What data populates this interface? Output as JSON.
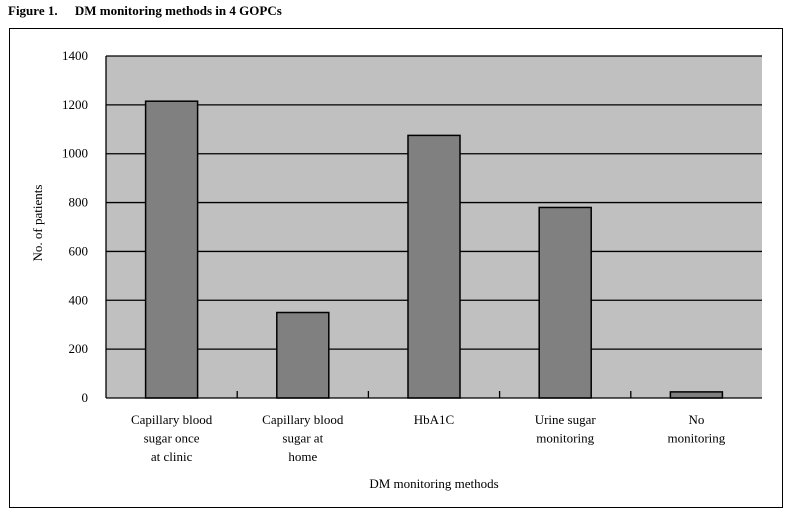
{
  "figure": {
    "label": "Figure 1.",
    "title": "DM monitoring methods in 4 GOPCs"
  },
  "colors": {
    "plot_background": "#c0c0c0",
    "bar_fill": "#808080",
    "bar_stroke": "#000000",
    "gridline": "#000000"
  },
  "chart_data": {
    "type": "bar",
    "categories": [
      "Capillary blood sugar once at clinic",
      "Capillary blood sugar at home",
      "HbA1C",
      "Urine sugar monitoring",
      "No monitoring"
    ],
    "category_label_lines": [
      [
        "Capillary blood",
        "sugar once",
        "at clinic"
      ],
      [
        "Capillary blood",
        "sugar at",
        "home"
      ],
      [
        "HbA1C"
      ],
      [
        "Urine sugar",
        "monitoring"
      ],
      [
        "No",
        "monitoring"
      ]
    ],
    "values": [
      1215,
      350,
      1075,
      780,
      25
    ],
    "xlabel": "DM monitoring methods",
    "ylabel": "No. of patients",
    "ylim": [
      0,
      1400
    ],
    "yticks": [
      0,
      200,
      400,
      600,
      800,
      1000,
      1200,
      1400
    ],
    "ytick_labels": [
      "0",
      "200",
      "400",
      "600",
      "800",
      "1000",
      "1200",
      "1400"
    ],
    "grid": true,
    "legend": "none"
  }
}
